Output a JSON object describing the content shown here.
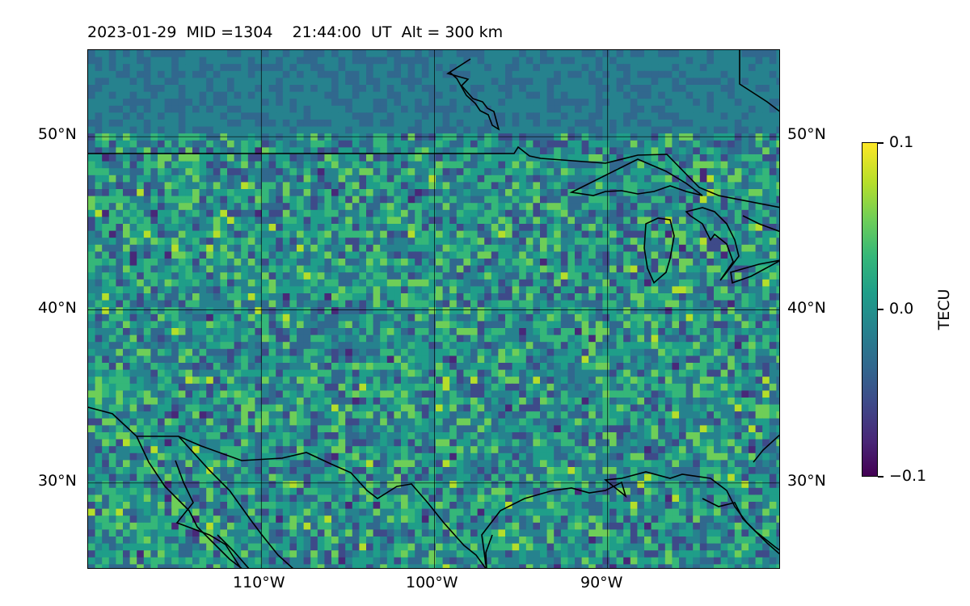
{
  "title": "2023-01-29  MID =1304    21:44:00  UT  Alt = 300 km",
  "map": {
    "lat_range": [
      25,
      55
    ],
    "lon_range": [
      -120,
      -80
    ],
    "lat_gridlines": [
      30,
      40,
      50
    ],
    "lon_gridlines": [
      -110,
      -100,
      -90
    ],
    "lat_labels": [
      "50°N",
      "40°N",
      "30°N"
    ],
    "lon_labels": [
      "110°W",
      "100°W",
      "90°W"
    ],
    "grid": true,
    "coastlines": true,
    "borders": true,
    "colormap": "viridis"
  },
  "colorbar": {
    "label": "TECU",
    "min": -0.1,
    "max": 0.1,
    "tick_labels": [
      "0.1",
      "0.0",
      "−0.1"
    ]
  }
}
